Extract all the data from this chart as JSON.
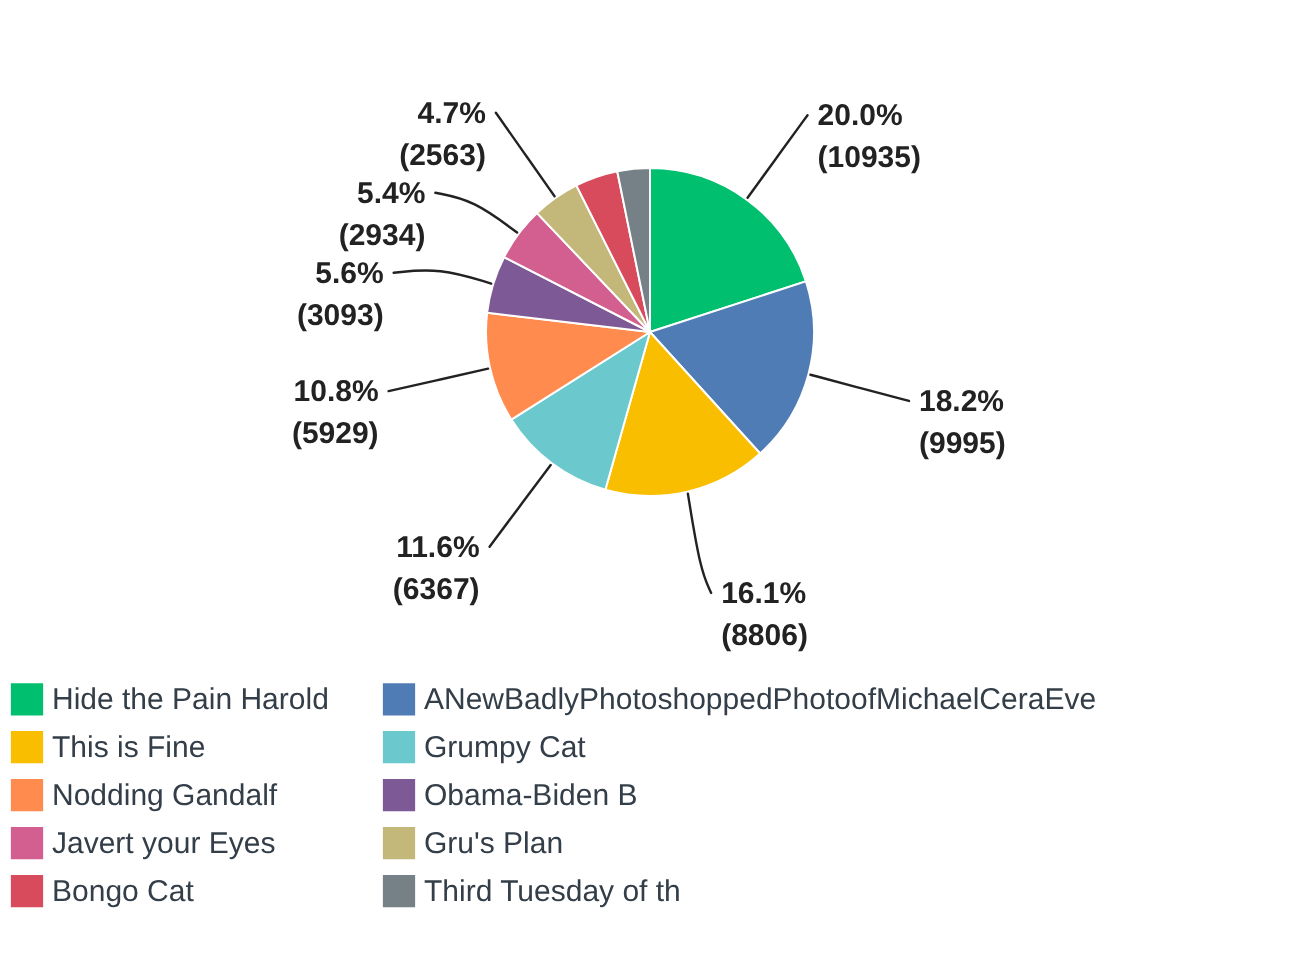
{
  "chart_data": {
    "type": "pie",
    "categories": [
      "Hide the Pain Harold",
      "ANewBadlyPhotoshoppedPhotoofMichaelCeraEve",
      "This is Fine",
      "Grumpy Cat",
      "Nodding Gandalf",
      "Obama-Biden B",
      "Javert your Eyes",
      "Gru's Plan",
      "Bongo Cat",
      "Third Tuesday of th"
    ],
    "values": [
      10935,
      9995,
      8806,
      6367,
      5929,
      3093,
      2934,
      2563,
      2300,
      1750
    ],
    "colors": [
      "#00bf6f",
      "#507cb6",
      "#f9be00",
      "#6bc8cd",
      "#ff8b4f",
      "#7d5a96",
      "#d25f90",
      "#c4b77a",
      "#d84b5c",
      "#768087"
    ],
    "value_labels": [
      "20.0%\n(10935)",
      "18.2%\n(9995)",
      "16.1%\n(8806)",
      "11.6%\n(6367)",
      "10.8%\n(5929)",
      "5.6%\n(3093)",
      "5.4%\n(2934)",
      "4.7%\n(2563)",
      null,
      null
    ],
    "legend": "bottom"
  }
}
